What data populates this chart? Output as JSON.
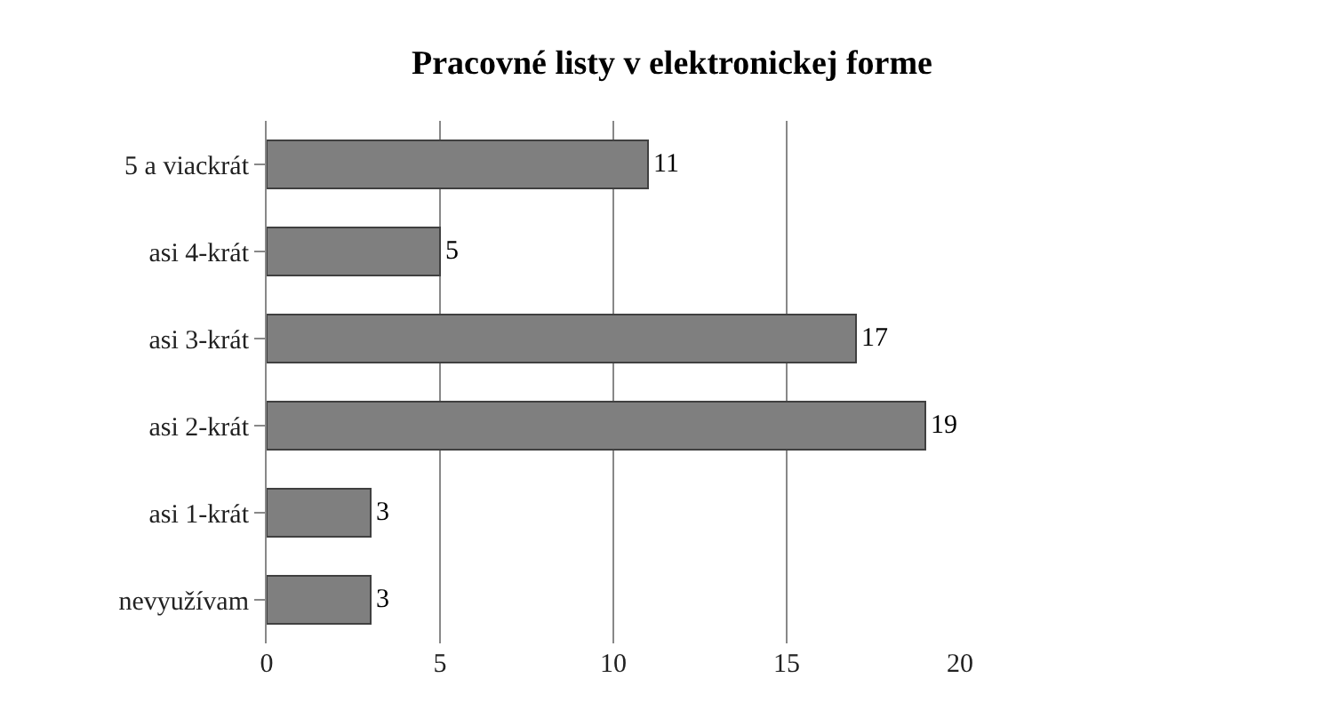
{
  "chart_data": {
    "type": "bar",
    "title": "Pracovné listy v elektronickej forme",
    "orientation": "horizontal",
    "categories": [
      "5 a viackrát",
      "asi 4-krát",
      "asi 3-krát",
      "asi 2-krát",
      "asi 1-krát",
      "nevyužívam"
    ],
    "values": [
      11,
      5,
      17,
      19,
      3,
      3
    ],
    "color": "#7f7f7f",
    "xlim": [
      0,
      20
    ],
    "xticks": [
      0,
      5,
      10,
      15,
      20
    ],
    "grid": "x",
    "data_labels": true
  }
}
